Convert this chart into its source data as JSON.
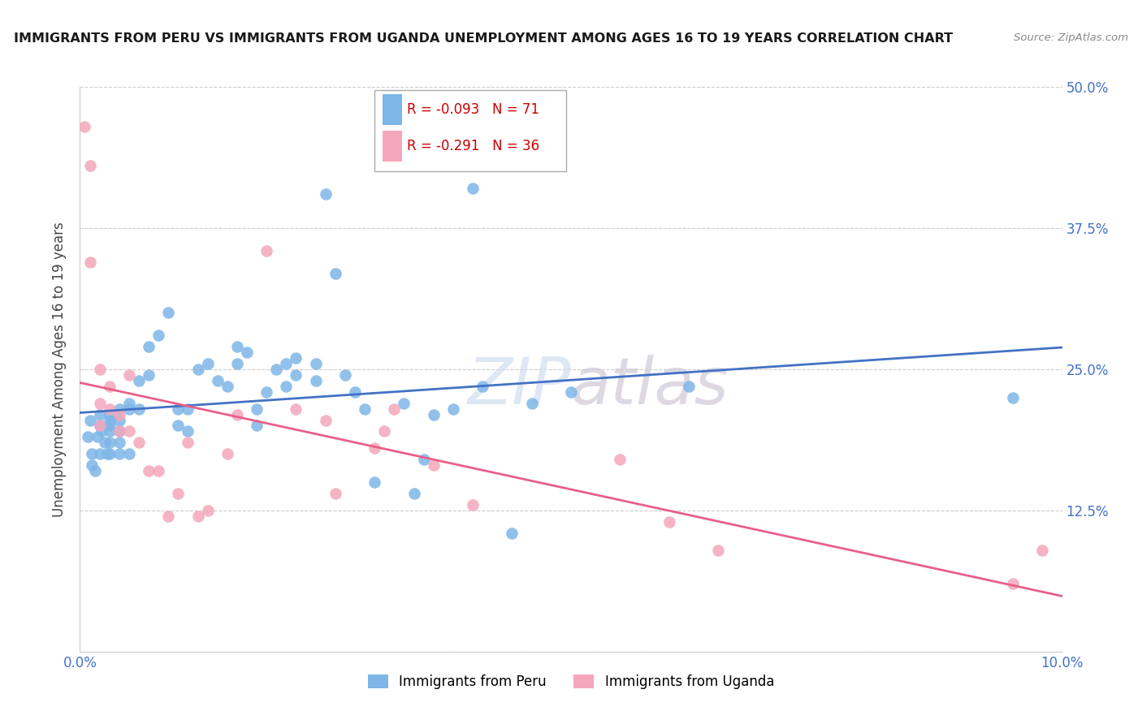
{
  "title": "IMMIGRANTS FROM PERU VS IMMIGRANTS FROM UGANDA UNEMPLOYMENT AMONG AGES 16 TO 19 YEARS CORRELATION CHART",
  "source": "Source: ZipAtlas.com",
  "ylabel": "Unemployment Among Ages 16 to 19 years",
  "xlim": [
    0.0,
    0.1
  ],
  "ylim": [
    0.0,
    0.5
  ],
  "xticks": [
    0.0,
    0.02,
    0.04,
    0.06,
    0.08,
    0.1
  ],
  "xticklabels": [
    "0.0%",
    "",
    "",
    "",
    "",
    "10.0%"
  ],
  "yticks": [
    0.0,
    0.125,
    0.25,
    0.375,
    0.5
  ],
  "yticklabels_left": [
    "",
    "",
    "",
    "",
    ""
  ],
  "yticklabels_right": [
    "",
    "12.5%",
    "25.0%",
    "37.5%",
    "50.0%"
  ],
  "peru_color": "#7eb6e8",
  "uganda_color": "#f4a7bb",
  "line_peru_color": "#4472c4",
  "line_uganda_color": "#e8608a",
  "R_peru": -0.093,
  "N_peru": 71,
  "R_uganda": -0.291,
  "N_uganda": 36,
  "legend_label_peru": "Immigrants from Peru",
  "legend_label_uganda": "Immigrants from Uganda",
  "peru_x": [
    0.0008,
    0.001,
    0.0012,
    0.0012,
    0.0015,
    0.0018,
    0.002,
    0.002,
    0.002,
    0.0022,
    0.0025,
    0.0028,
    0.003,
    0.003,
    0.003,
    0.003,
    0.003,
    0.003,
    0.004,
    0.004,
    0.004,
    0.004,
    0.004,
    0.005,
    0.005,
    0.005,
    0.006,
    0.006,
    0.007,
    0.007,
    0.008,
    0.009,
    0.01,
    0.01,
    0.011,
    0.011,
    0.012,
    0.013,
    0.014,
    0.015,
    0.016,
    0.016,
    0.017,
    0.018,
    0.018,
    0.019,
    0.02,
    0.021,
    0.021,
    0.022,
    0.022,
    0.024,
    0.024,
    0.025,
    0.026,
    0.027,
    0.028,
    0.029,
    0.03,
    0.033,
    0.034,
    0.035,
    0.036,
    0.038,
    0.04,
    0.041,
    0.044,
    0.046,
    0.05,
    0.062,
    0.095
  ],
  "peru_y": [
    0.19,
    0.205,
    0.175,
    0.165,
    0.16,
    0.19,
    0.175,
    0.2,
    0.21,
    0.195,
    0.185,
    0.175,
    0.2,
    0.21,
    0.205,
    0.195,
    0.185,
    0.175,
    0.215,
    0.205,
    0.195,
    0.185,
    0.175,
    0.22,
    0.215,
    0.175,
    0.24,
    0.215,
    0.27,
    0.245,
    0.28,
    0.3,
    0.215,
    0.2,
    0.215,
    0.195,
    0.25,
    0.255,
    0.24,
    0.235,
    0.27,
    0.255,
    0.265,
    0.215,
    0.2,
    0.23,
    0.25,
    0.255,
    0.235,
    0.26,
    0.245,
    0.255,
    0.24,
    0.405,
    0.335,
    0.245,
    0.23,
    0.215,
    0.15,
    0.22,
    0.14,
    0.17,
    0.21,
    0.215,
    0.41,
    0.235,
    0.105,
    0.22,
    0.23,
    0.235,
    0.225
  ],
  "uganda_x": [
    0.0005,
    0.001,
    0.001,
    0.002,
    0.002,
    0.002,
    0.003,
    0.003,
    0.004,
    0.004,
    0.005,
    0.005,
    0.006,
    0.007,
    0.008,
    0.009,
    0.01,
    0.011,
    0.012,
    0.013,
    0.015,
    0.016,
    0.019,
    0.022,
    0.025,
    0.026,
    0.03,
    0.031,
    0.032,
    0.036,
    0.04,
    0.055,
    0.06,
    0.065,
    0.095,
    0.098
  ],
  "uganda_y": [
    0.465,
    0.43,
    0.345,
    0.25,
    0.22,
    0.2,
    0.235,
    0.215,
    0.21,
    0.195,
    0.245,
    0.195,
    0.185,
    0.16,
    0.16,
    0.12,
    0.14,
    0.185,
    0.12,
    0.125,
    0.175,
    0.21,
    0.355,
    0.215,
    0.205,
    0.14,
    0.18,
    0.195,
    0.215,
    0.165,
    0.13,
    0.17,
    0.115,
    0.09,
    0.06,
    0.09
  ]
}
